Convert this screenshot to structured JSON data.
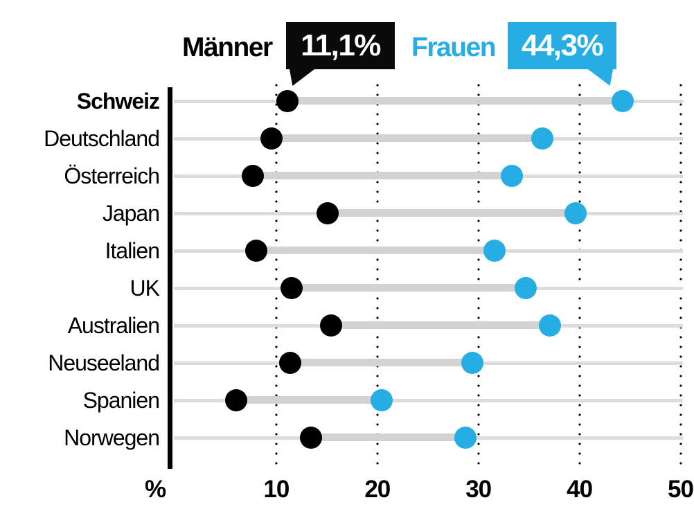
{
  "header": {
    "men_label": "Männer",
    "men_value": "11,1%",
    "women_label": "Frauen",
    "women_value": "44,3%"
  },
  "colors": {
    "men": "#000000",
    "women": "#26ade4",
    "track": "#dcdcdc",
    "connector": "#d2d2d2",
    "text": "#000000",
    "callout_text": "#ffffff"
  },
  "chart_data": {
    "type": "dumbbell",
    "title": "",
    "xlabel": "",
    "ylabel": "",
    "unit_label": "%",
    "x_ticks": [
      10,
      20,
      30,
      40,
      50
    ],
    "x_tick_labels": [
      "10",
      "20",
      "30",
      "40",
      "50"
    ],
    "xlim": [
      0,
      52
    ],
    "grid": "dotted-vertical",
    "legend_position": "top",
    "series": [
      {
        "name": "Männer",
        "color": "#000000",
        "callout_value": "11,1%"
      },
      {
        "name": "Frauen",
        "color": "#26ade4",
        "callout_value": "44,3%"
      }
    ],
    "categories": [
      "Schweiz",
      "Deutschland",
      "Österreich",
      "Japan",
      "Italien",
      "UK",
      "Australien",
      "Neuseeland",
      "Spanien",
      "Norwegen"
    ],
    "rows": [
      {
        "country": "Schweiz",
        "maenner": 11.1,
        "frauen": 44.3,
        "bold": true
      },
      {
        "country": "Deutschland",
        "maenner": 9.5,
        "frauen": 36.3,
        "bold": false
      },
      {
        "country": "Österreich",
        "maenner": 7.7,
        "frauen": 33.3,
        "bold": false
      },
      {
        "country": "Japan",
        "maenner": 15.1,
        "frauen": 39.6,
        "bold": false
      },
      {
        "country": "Italien",
        "maenner": 8.0,
        "frauen": 31.6,
        "bold": false
      },
      {
        "country": "UK",
        "maenner": 11.5,
        "frauen": 34.7,
        "bold": false
      },
      {
        "country": "Australien",
        "maenner": 15.4,
        "frauen": 37.1,
        "bold": false
      },
      {
        "country": "Neuseeland",
        "maenner": 11.4,
        "frauen": 29.4,
        "bold": false
      },
      {
        "country": "Spanien",
        "maenner": 6.0,
        "frauen": 20.4,
        "bold": false
      },
      {
        "country": "Norwegen",
        "maenner": 13.4,
        "frauen": 28.7,
        "bold": false
      }
    ]
  }
}
